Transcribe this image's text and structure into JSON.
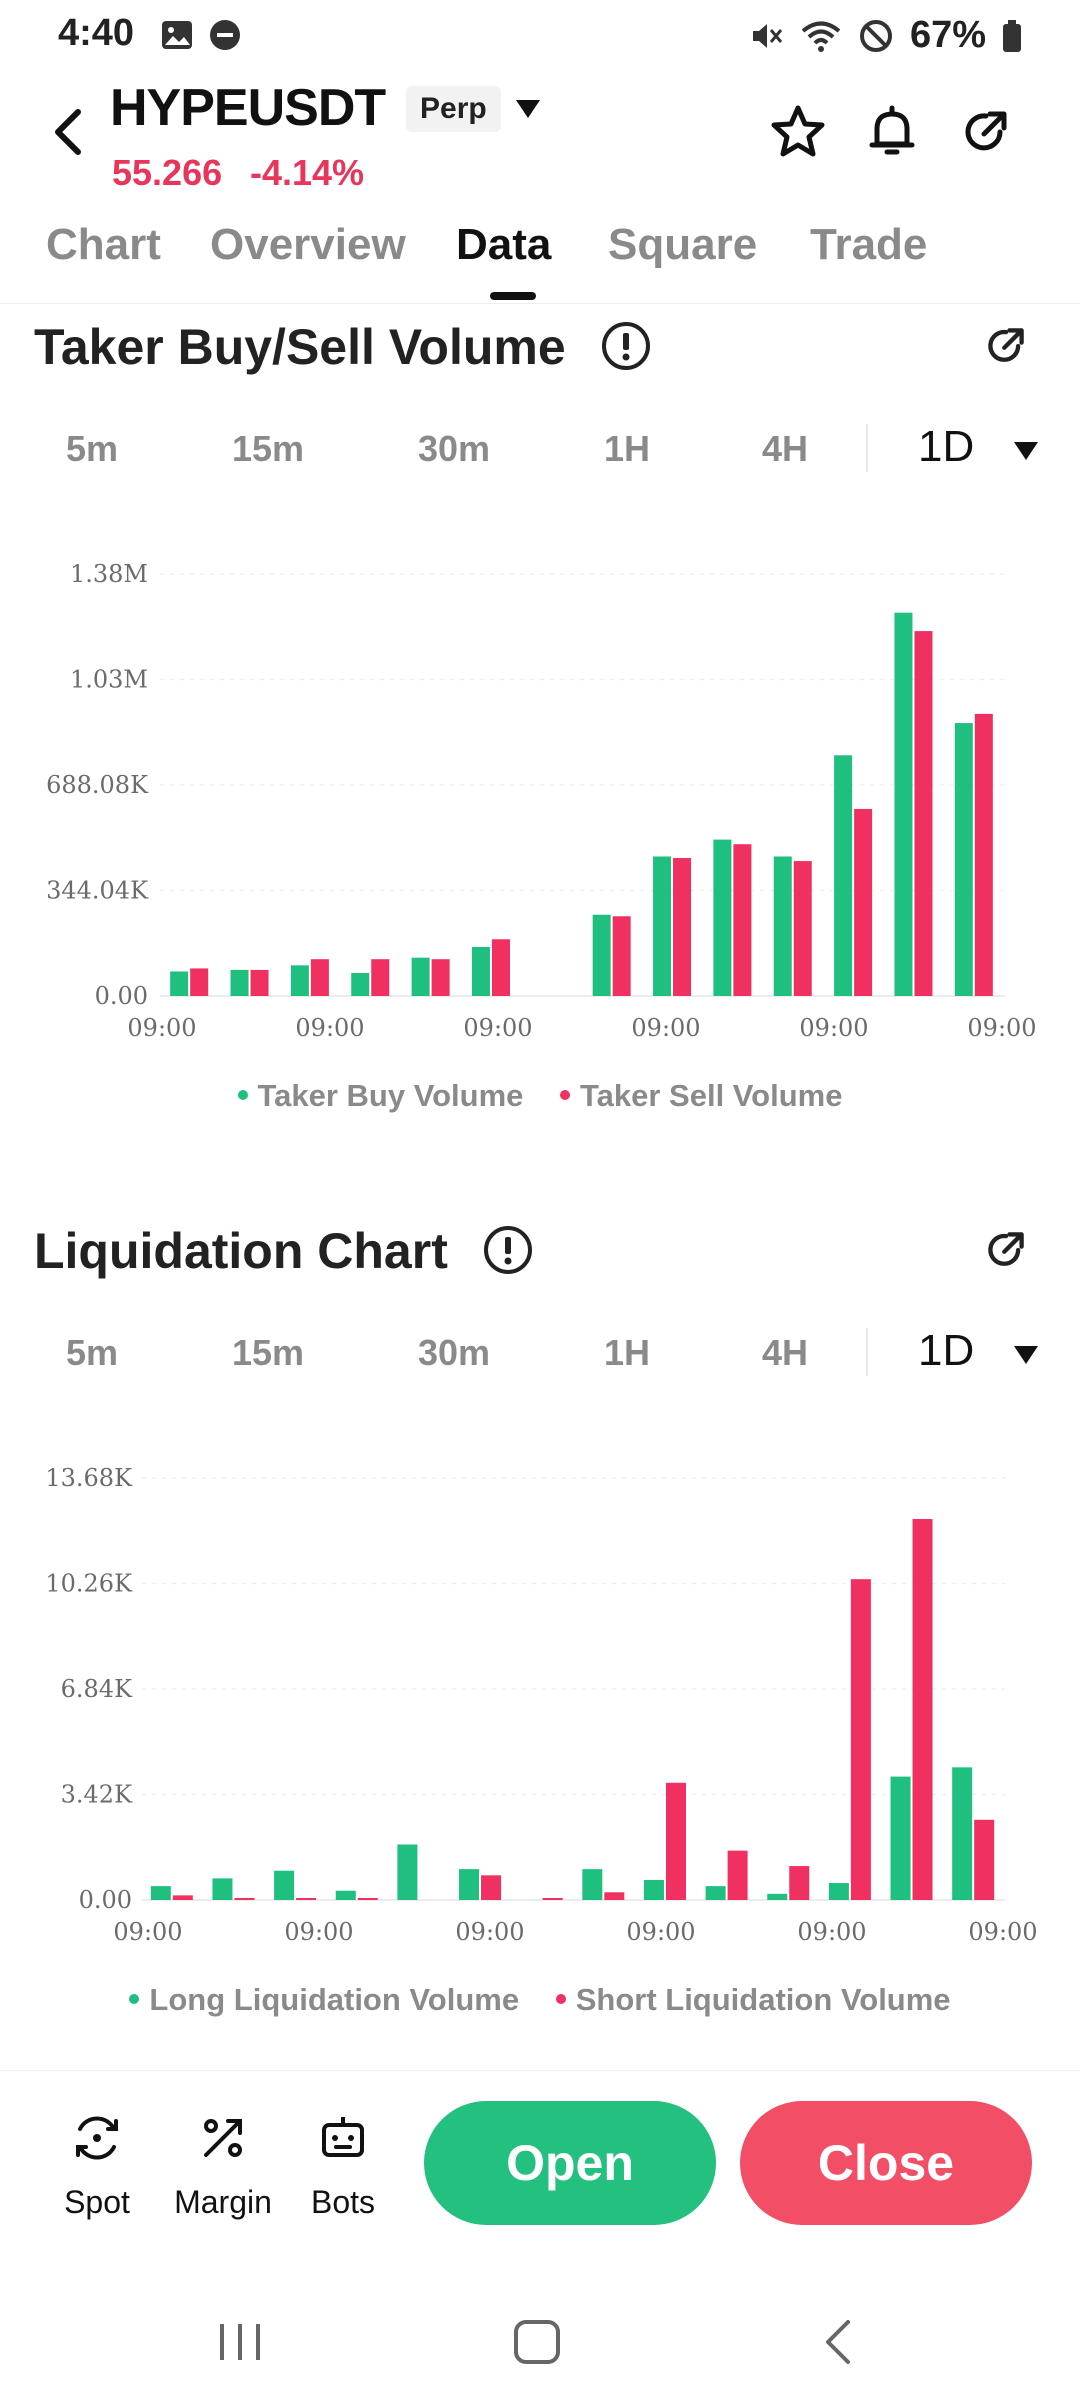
{
  "status_bar": {
    "time": "4:40",
    "battery": "67%"
  },
  "header": {
    "symbol": "HYPEUSDT",
    "badge": "Perp",
    "price": "55.266",
    "change": "-4.14%"
  },
  "tabs": [
    {
      "label": "Chart"
    },
    {
      "label": "Overview"
    },
    {
      "label": "Data"
    },
    {
      "label": "Square"
    },
    {
      "label": "Trade"
    }
  ],
  "intervals": [
    "5m",
    "15m",
    "30m",
    "1H",
    "4H",
    "1D"
  ],
  "colors": {
    "buy": "#1fbf7f",
    "sell": "#f03060",
    "price_down": "#e8355b"
  },
  "taker_section": {
    "title": "Taker Buy/Sell Volume"
  },
  "liquidation_section": {
    "title": "Liquidation Chart"
  },
  "chart_data": [
    {
      "type": "bar",
      "title": "Taker Buy/Sell Volume",
      "y_ticks": [
        "0.00",
        "344.04K",
        "688.08K",
        "1.03M",
        "1.38M"
      ],
      "ylim": [
        0,
        1376160
      ],
      "x_ticks": [
        "09:00",
        "09:00",
        "09:00",
        "09:00",
        "09:00",
        "09:00"
      ],
      "categories": 14,
      "series": [
        {
          "name": "Taker Buy Volume",
          "values": [
            80000,
            85000,
            100000,
            75000,
            125000,
            160000,
            0,
            265000,
            455000,
            510000,
            455000,
            785000,
            1250000,
            890000
          ]
        },
        {
          "name": "Taker Sell Volume",
          "values": [
            90000,
            85000,
            120000,
            120000,
            120000,
            185000,
            0,
            260000,
            450000,
            495000,
            440000,
            610000,
            1190000,
            920000
          ]
        }
      ],
      "grid": true,
      "legend": "bottom"
    },
    {
      "type": "bar",
      "title": "Liquidation Chart",
      "y_ticks": [
        "0.00",
        "3.42K",
        "6.84K",
        "10.26K",
        "13.68K"
      ],
      "ylim": [
        0,
        13680
      ],
      "x_ticks": [
        "09:00",
        "09:00",
        "09:00",
        "09:00",
        "09:00",
        "09:00"
      ],
      "categories": 14,
      "series": [
        {
          "name": "Long Liquidation Volume",
          "values": [
            450,
            700,
            950,
            300,
            1800,
            1000,
            0,
            1000,
            650,
            450,
            200,
            550,
            4000,
            4300
          ]
        },
        {
          "name": "Short Liquidation Volume",
          "values": [
            150,
            40,
            30,
            20,
            0,
            800,
            30,
            250,
            3800,
            1600,
            1100,
            10400,
            12350,
            2600
          ]
        }
      ],
      "grid": true,
      "legend": "bottom"
    }
  ],
  "bottom_bar": {
    "tools": [
      {
        "label": "Spot",
        "icon": "spot-icon"
      },
      {
        "label": "Margin",
        "icon": "margin-icon"
      },
      {
        "label": "Bots",
        "icon": "bots-icon"
      }
    ],
    "open_label": "Open",
    "close_label": "Close"
  }
}
